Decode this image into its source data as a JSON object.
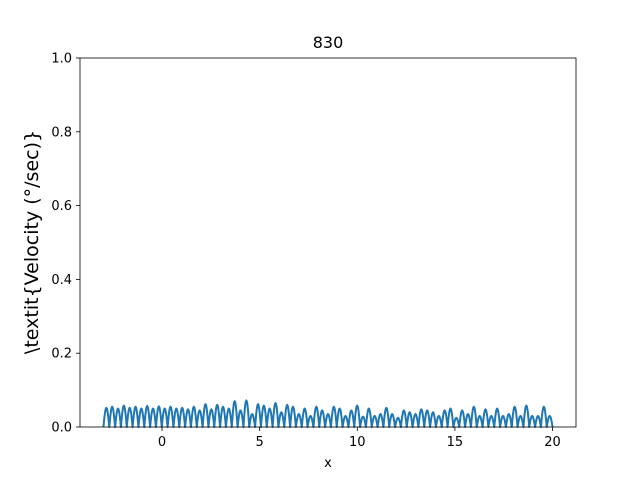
{
  "chart_data": {
    "type": "line",
    "title": "830",
    "xlabel": "x",
    "ylabel": "\\textit{Velocity (°/sec)}",
    "xlim": [
      -4.2,
      21.2
    ],
    "ylim": [
      0.0,
      1.0
    ],
    "xticks": [
      0,
      5,
      10,
      15,
      20
    ],
    "yticks": [
      0.0,
      0.2,
      0.4,
      0.6,
      0.8,
      1.0
    ],
    "xtick_labels": [
      "0",
      "5",
      "10",
      "15",
      "20"
    ],
    "ytick_labels": [
      "0.0",
      "0.2",
      "0.4",
      "0.6",
      "0.8",
      "1.0"
    ],
    "grid": false,
    "legend": false,
    "series": [
      {
        "color": "#1f77b4",
        "x_start": -3.0,
        "x_end": 20.0,
        "peaks": [
          0.052,
          0.055,
          0.05,
          0.058,
          0.052,
          0.055,
          0.05,
          0.057,
          0.05,
          0.056,
          0.05,
          0.055,
          0.05,
          0.052,
          0.048,
          0.055,
          0.045,
          0.062,
          0.048,
          0.06,
          0.055,
          0.05,
          0.07,
          0.045,
          0.072,
          0.035,
          0.062,
          0.058,
          0.05,
          0.065,
          0.04,
          0.06,
          0.055,
          0.035,
          0.05,
          0.03,
          0.055,
          0.045,
          0.035,
          0.055,
          0.05,
          0.03,
          0.045,
          0.058,
          0.028,
          0.05,
          0.03,
          0.035,
          0.052,
          0.035,
          0.025,
          0.045,
          0.04,
          0.035,
          0.048,
          0.045,
          0.04,
          0.03,
          0.045,
          0.05,
          0.025,
          0.045,
          0.035,
          0.055,
          0.03,
          0.048,
          0.03,
          0.05,
          0.03,
          0.035,
          0.055,
          0.03,
          0.058,
          0.03,
          0.03,
          0.055,
          0.03
        ]
      }
    ]
  }
}
